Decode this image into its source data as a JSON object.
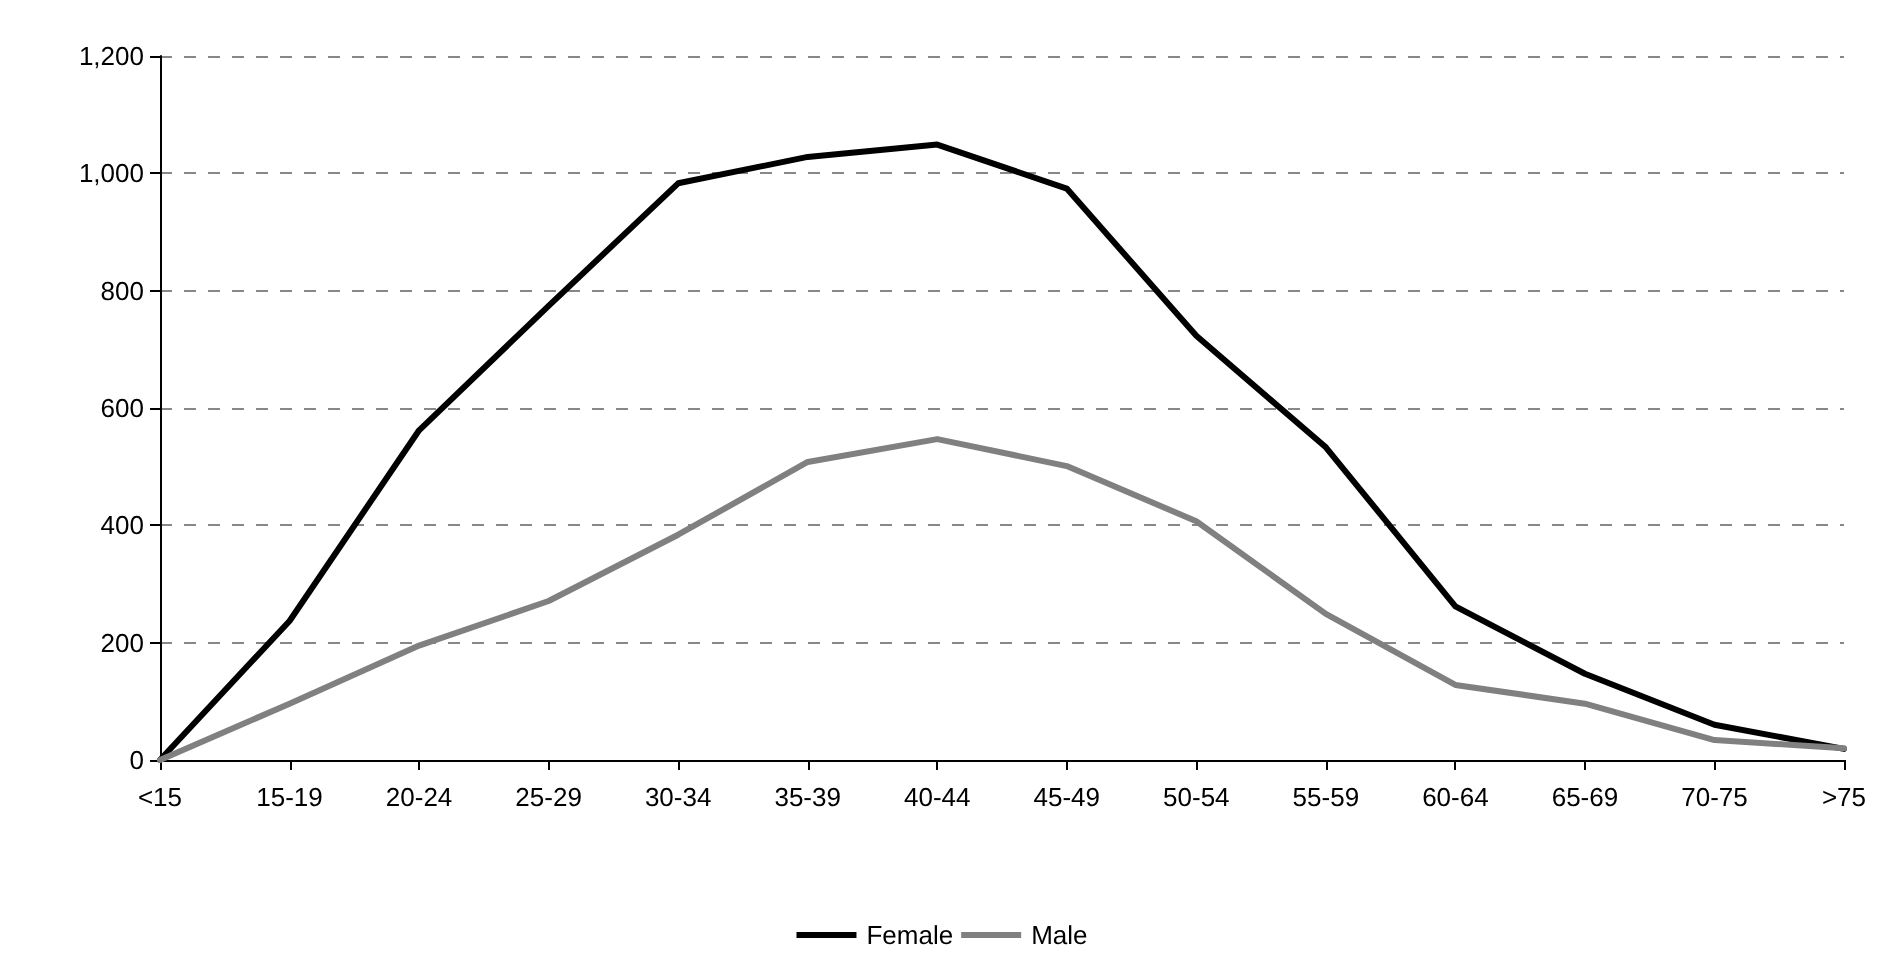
{
  "chart_data": {
    "type": "line",
    "categories": [
      "<15",
      "15-19",
      "20-24",
      "25-29",
      "30-34",
      "35-39",
      "40-44",
      "45-49",
      "50-54",
      "55-59",
      "60-64",
      "65-69",
      "70-75",
      ">75"
    ],
    "series": [
      {
        "name": "Female",
        "color": "#000000",
        "values": [
          0,
          237,
          562,
          774,
          983,
          1028,
          1049,
          974,
          723,
          533,
          262,
          147,
          60,
          19
        ]
      },
      {
        "name": "Male",
        "color": "#808080",
        "values": [
          0,
          96,
          195,
          271,
          384,
          508,
          547,
          501,
          407,
          249,
          128,
          96,
          34,
          20
        ]
      }
    ],
    "ylim": [
      0,
      1200
    ],
    "yticks": [
      {
        "value": 0,
        "label": "0"
      },
      {
        "value": 200,
        "label": "200"
      },
      {
        "value": 400,
        "label": "400"
      },
      {
        "value": 600,
        "label": "600"
      },
      {
        "value": 800,
        "label": "800"
      },
      {
        "value": 1000,
        "label": "1,000"
      },
      {
        "value": 1200,
        "label": "1,200"
      }
    ],
    "grid": "y",
    "legend": "bottom",
    "marker": "none",
    "line_style": "solid"
  }
}
